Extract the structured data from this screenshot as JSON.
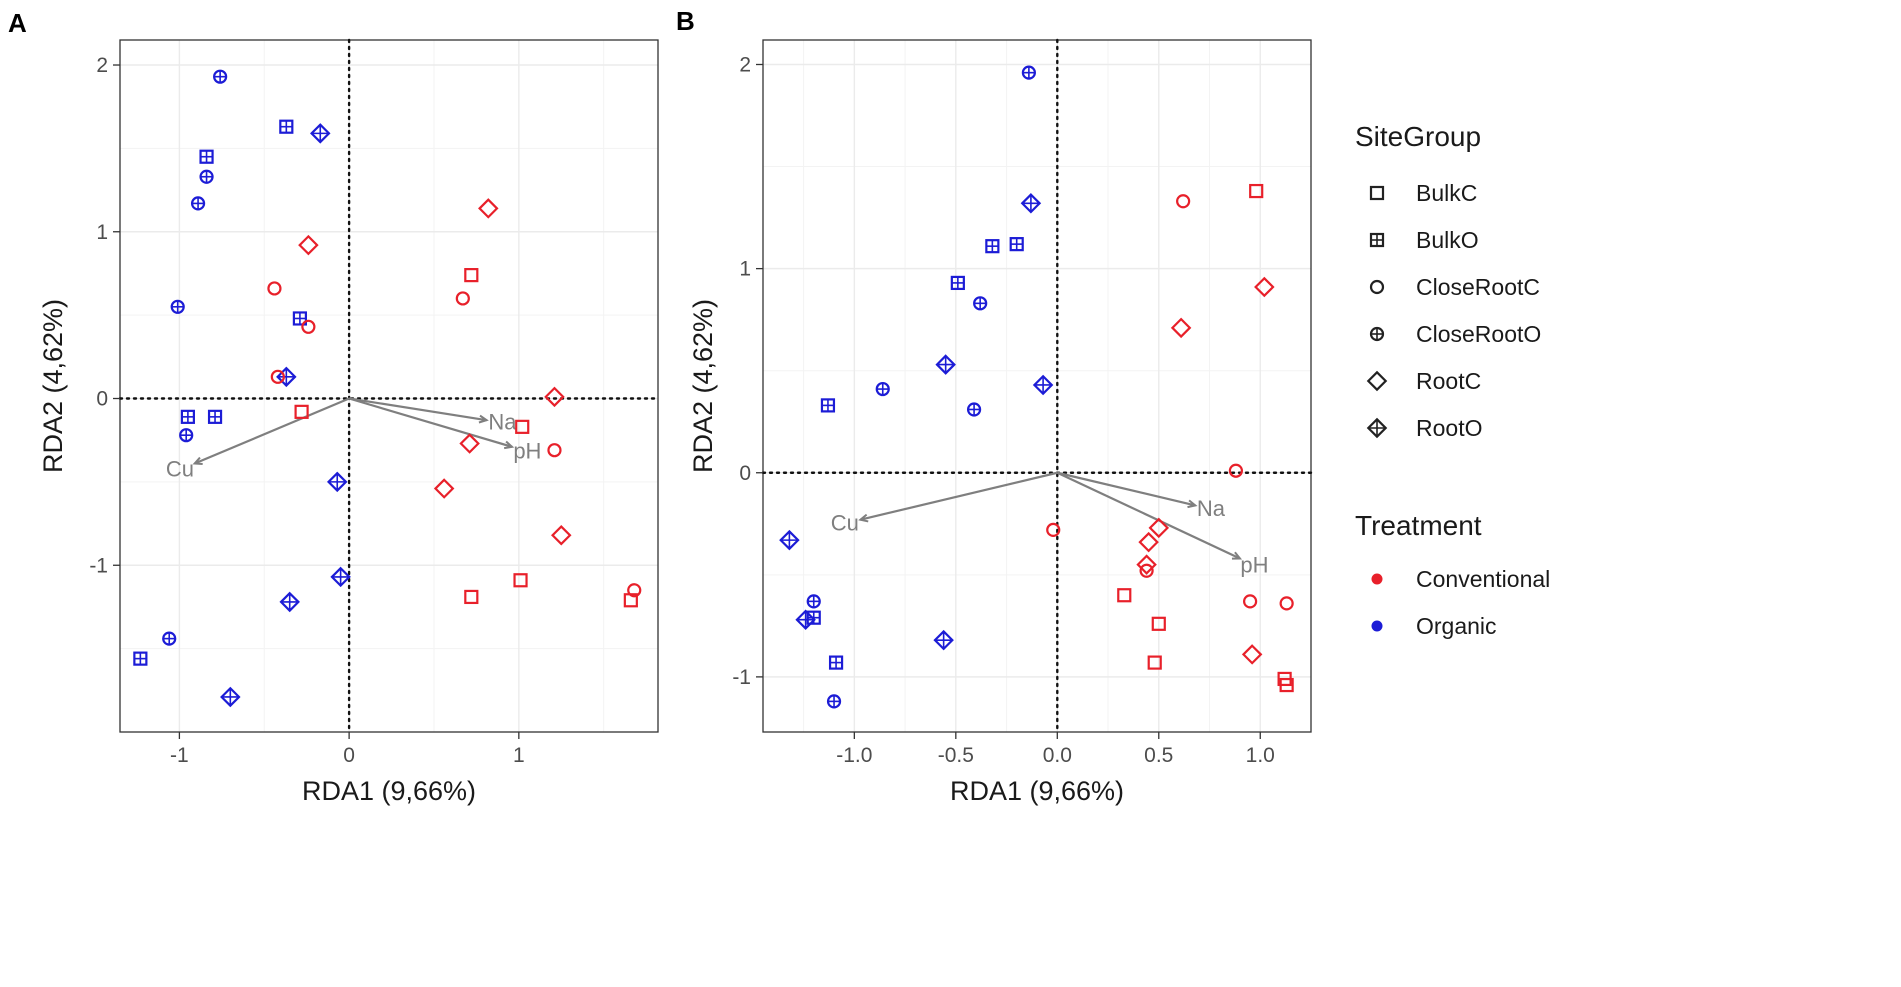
{
  "chart_data": [
    {
      "panel_label": "A",
      "type": "scatter",
      "xlabel": "RDA1 (9,66%)",
      "ylabel": "RDA2 (4,62%)",
      "xlim": [
        -1.35,
        1.82
      ],
      "ylim": [
        -2.0,
        2.15
      ],
      "xticks": [
        -1,
        0,
        1
      ],
      "xtick_labels": [
        "-1",
        "0",
        "1"
      ],
      "yticks": [
        -1,
        0,
        1,
        2
      ],
      "ytick_labels": [
        "-1",
        "0",
        "1",
        "2"
      ],
      "grid": true,
      "points": [
        {
          "x": -0.76,
          "y": 1.93,
          "group": "CloseRootO",
          "treatment": "Organic"
        },
        {
          "x": -0.37,
          "y": 1.63,
          "group": "BulkO",
          "treatment": "Organic"
        },
        {
          "x": -0.17,
          "y": 1.59,
          "group": "RootO",
          "treatment": "Organic"
        },
        {
          "x": -0.84,
          "y": 1.45,
          "group": "BulkO",
          "treatment": "Organic"
        },
        {
          "x": -0.84,
          "y": 1.33,
          "group": "CloseRootO",
          "treatment": "Organic"
        },
        {
          "x": -0.89,
          "y": 1.17,
          "group": "CloseRootO",
          "treatment": "Organic"
        },
        {
          "x": -1.01,
          "y": 0.55,
          "group": "CloseRootO",
          "treatment": "Organic"
        },
        {
          "x": -0.29,
          "y": 0.48,
          "group": "BulkO",
          "treatment": "Organic"
        },
        {
          "x": -0.37,
          "y": 0.13,
          "group": "RootO",
          "treatment": "Organic"
        },
        {
          "x": -0.95,
          "y": -0.11,
          "group": "BulkO",
          "treatment": "Organic"
        },
        {
          "x": -0.79,
          "y": -0.11,
          "group": "BulkO",
          "treatment": "Organic"
        },
        {
          "x": -0.96,
          "y": -0.22,
          "group": "CloseRootO",
          "treatment": "Organic"
        },
        {
          "x": -0.07,
          "y": -0.5,
          "group": "RootO",
          "treatment": "Organic"
        },
        {
          "x": -0.05,
          "y": -1.07,
          "group": "RootO",
          "treatment": "Organic"
        },
        {
          "x": -0.35,
          "y": -1.22,
          "group": "RootO",
          "treatment": "Organic"
        },
        {
          "x": -1.06,
          "y": -1.44,
          "group": "CloseRootO",
          "treatment": "Organic"
        },
        {
          "x": -1.23,
          "y": -1.56,
          "group": "BulkO",
          "treatment": "Organic"
        },
        {
          "x": -0.7,
          "y": -1.79,
          "group": "RootO",
          "treatment": "Organic"
        },
        {
          "x": 0.82,
          "y": 1.14,
          "group": "RootC",
          "treatment": "Conventional"
        },
        {
          "x": -0.24,
          "y": 0.92,
          "group": "RootC",
          "treatment": "Conventional"
        },
        {
          "x": 0.72,
          "y": 0.74,
          "group": "BulkC",
          "treatment": "Conventional"
        },
        {
          "x": -0.44,
          "y": 0.66,
          "group": "CloseRootC",
          "treatment": "Conventional"
        },
        {
          "x": 0.67,
          "y": 0.6,
          "group": "CloseRootC",
          "treatment": "Conventional"
        },
        {
          "x": -0.24,
          "y": 0.43,
          "group": "CloseRootC",
          "treatment": "Conventional"
        },
        {
          "x": -0.42,
          "y": 0.13,
          "group": "CloseRootC",
          "treatment": "Conventional"
        },
        {
          "x": 1.21,
          "y": 0.01,
          "group": "RootC",
          "treatment": "Conventional"
        },
        {
          "x": -0.28,
          "y": -0.08,
          "group": "BulkC",
          "treatment": "Conventional"
        },
        {
          "x": 1.02,
          "y": -0.17,
          "group": "BulkC",
          "treatment": "Conventional"
        },
        {
          "x": 0.71,
          "y": -0.27,
          "group": "RootC",
          "treatment": "Conventional"
        },
        {
          "x": 1.21,
          "y": -0.31,
          "group": "CloseRootC",
          "treatment": "Conventional"
        },
        {
          "x": 0.56,
          "y": -0.54,
          "group": "RootC",
          "treatment": "Conventional"
        },
        {
          "x": 1.25,
          "y": -0.82,
          "group": "RootC",
          "treatment": "Conventional"
        },
        {
          "x": 1.01,
          "y": -1.09,
          "group": "BulkC",
          "treatment": "Conventional"
        },
        {
          "x": 0.72,
          "y": -1.19,
          "group": "BulkC",
          "treatment": "Conventional"
        },
        {
          "x": 1.68,
          "y": -1.15,
          "group": "CloseRootC",
          "treatment": "Conventional"
        },
        {
          "x": 1.66,
          "y": -1.21,
          "group": "BulkC",
          "treatment": "Conventional"
        }
      ],
      "vectors": [
        {
          "label": "Na",
          "x": 0.81,
          "y": -0.13
        },
        {
          "label": "pH",
          "x": 0.96,
          "y": -0.29
        },
        {
          "label": "Cu",
          "x": -0.91,
          "y": -0.39
        }
      ]
    },
    {
      "panel_label": "B",
      "type": "scatter",
      "xlabel": "RDA1 (9,66%)",
      "ylabel": "RDA2 (4,62%)",
      "xlim": [
        -1.45,
        1.25
      ],
      "ylim": [
        -1.27,
        2.12
      ],
      "xticks": [
        -1.0,
        -0.5,
        0.0,
        0.5,
        1.0
      ],
      "xtick_labels": [
        "-1.0",
        "-0.5",
        "0.0",
        "0.5",
        "1.0"
      ],
      "yticks": [
        -1,
        0,
        1,
        2
      ],
      "ytick_labels": [
        "-1",
        "0",
        "1",
        "2"
      ],
      "grid": true,
      "points": [
        {
          "x": -0.14,
          "y": 1.96,
          "group": "CloseRootO",
          "treatment": "Organic"
        },
        {
          "x": -0.13,
          "y": 1.32,
          "group": "RootO",
          "treatment": "Organic"
        },
        {
          "x": -0.32,
          "y": 1.11,
          "group": "BulkO",
          "treatment": "Organic"
        },
        {
          "x": -0.2,
          "y": 1.12,
          "group": "BulkO",
          "treatment": "Organic"
        },
        {
          "x": -0.49,
          "y": 0.93,
          "group": "BulkO",
          "treatment": "Organic"
        },
        {
          "x": -0.38,
          "y": 0.83,
          "group": "CloseRootO",
          "treatment": "Organic"
        },
        {
          "x": -0.55,
          "y": 0.53,
          "group": "RootO",
          "treatment": "Organic"
        },
        {
          "x": -0.07,
          "y": 0.43,
          "group": "RootO",
          "treatment": "Organic"
        },
        {
          "x": -0.86,
          "y": 0.41,
          "group": "CloseRootO",
          "treatment": "Organic"
        },
        {
          "x": -1.13,
          "y": 0.33,
          "group": "BulkO",
          "treatment": "Organic"
        },
        {
          "x": -0.41,
          "y": 0.31,
          "group": "CloseRootO",
          "treatment": "Organic"
        },
        {
          "x": -1.32,
          "y": -0.33,
          "group": "RootO",
          "treatment": "Organic"
        },
        {
          "x": -1.2,
          "y": -0.63,
          "group": "CloseRootO",
          "treatment": "Organic"
        },
        {
          "x": -1.2,
          "y": -0.71,
          "group": "BulkO",
          "treatment": "Organic"
        },
        {
          "x": -1.24,
          "y": -0.72,
          "group": "RootO",
          "treatment": "Organic"
        },
        {
          "x": -0.56,
          "y": -0.82,
          "group": "RootO",
          "treatment": "Organic"
        },
        {
          "x": -1.09,
          "y": -0.93,
          "group": "BulkO",
          "treatment": "Organic"
        },
        {
          "x": -1.1,
          "y": -1.12,
          "group": "CloseRootO",
          "treatment": "Organic"
        },
        {
          "x": 0.98,
          "y": 1.38,
          "group": "BulkC",
          "treatment": "Conventional"
        },
        {
          "x": 0.62,
          "y": 1.33,
          "group": "CloseRootC",
          "treatment": "Conventional"
        },
        {
          "x": 1.02,
          "y": 0.91,
          "group": "RootC",
          "treatment": "Conventional"
        },
        {
          "x": 0.61,
          "y": 0.71,
          "group": "RootC",
          "treatment": "Conventional"
        },
        {
          "x": 0.88,
          "y": 0.01,
          "group": "CloseRootC",
          "treatment": "Conventional"
        },
        {
          "x": -0.02,
          "y": -0.28,
          "group": "CloseRootC",
          "treatment": "Conventional"
        },
        {
          "x": 0.5,
          "y": -0.27,
          "group": "RootC",
          "treatment": "Conventional"
        },
        {
          "x": 0.45,
          "y": -0.34,
          "group": "RootC",
          "treatment": "Conventional"
        },
        {
          "x": 0.44,
          "y": -0.45,
          "group": "RootC",
          "treatment": "Conventional"
        },
        {
          "x": 0.44,
          "y": -0.48,
          "group": "CloseRootC",
          "treatment": "Conventional"
        },
        {
          "x": 0.33,
          "y": -0.6,
          "group": "BulkC",
          "treatment": "Conventional"
        },
        {
          "x": 0.95,
          "y": -0.63,
          "group": "CloseRootC",
          "treatment": "Conventional"
        },
        {
          "x": 1.13,
          "y": -0.64,
          "group": "CloseRootC",
          "treatment": "Conventional"
        },
        {
          "x": 0.5,
          "y": -0.74,
          "group": "BulkC",
          "treatment": "Conventional"
        },
        {
          "x": 0.96,
          "y": -0.89,
          "group": "RootC",
          "treatment": "Conventional"
        },
        {
          "x": 0.48,
          "y": -0.93,
          "group": "BulkC",
          "treatment": "Conventional"
        },
        {
          "x": 1.12,
          "y": -1.01,
          "group": "BulkC",
          "treatment": "Conventional"
        },
        {
          "x": 1.13,
          "y": -1.04,
          "group": "BulkC",
          "treatment": "Conventional"
        }
      ],
      "vectors": [
        {
          "label": "Na",
          "x": 0.68,
          "y": -0.16
        },
        {
          "label": "pH",
          "x": 0.9,
          "y": -0.42
        },
        {
          "label": "Cu",
          "x": -0.97,
          "y": -0.23
        }
      ]
    }
  ],
  "legend": {
    "sitegroup_title": "SiteGroup",
    "sitegroup_items": [
      {
        "label": "BulkC",
        "shape": "square"
      },
      {
        "label": "BulkO",
        "shape": "square-plus"
      },
      {
        "label": "CloseRootC",
        "shape": "circle"
      },
      {
        "label": "CloseRootO",
        "shape": "circle-plus"
      },
      {
        "label": "RootC",
        "shape": "diamond"
      },
      {
        "label": "RootO",
        "shape": "diamond-plus"
      }
    ],
    "treatment_title": "Treatment",
    "treatment_items": [
      {
        "label": "Conventional",
        "color": "#e8202a"
      },
      {
        "label": "Organic",
        "color": "#1c1cd6"
      }
    ]
  },
  "colors": {
    "Conventional": "#e8202a",
    "Organic": "#1c1cd6",
    "vector": "#7f7f7f",
    "axis_text": "#4d4d4d",
    "grid": "#ebebeb"
  }
}
